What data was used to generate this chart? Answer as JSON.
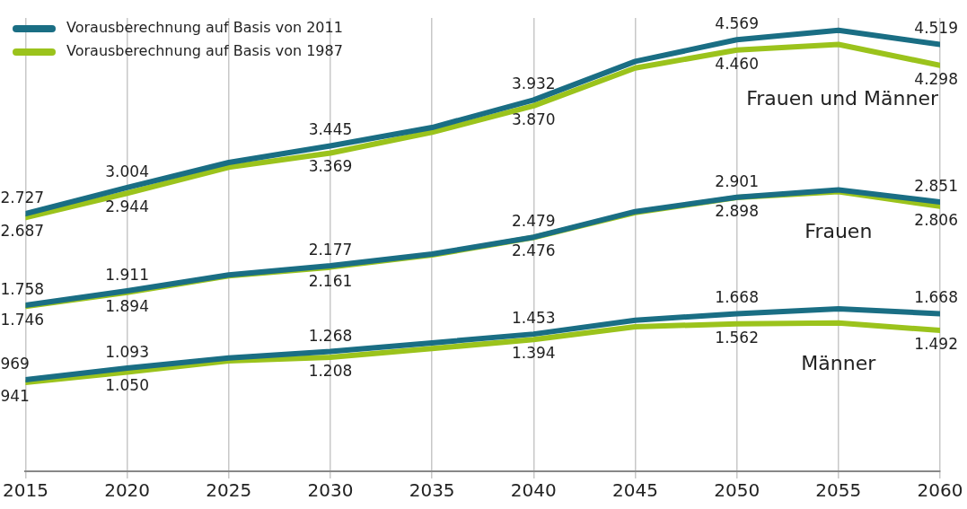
{
  "chart_data": {
    "type": "line",
    "x": [
      2015,
      2020,
      2025,
      2030,
      2035,
      2040,
      2045,
      2050,
      2055,
      2060
    ],
    "xlim": [
      2015,
      2060
    ],
    "xticks": [
      2015,
      2020,
      2025,
      2030,
      2035,
      2040,
      2045,
      2050,
      2055,
      2060
    ],
    "ylim": [
      0,
      4800
    ],
    "tick_labels": "x",
    "grid": "x",
    "legend": "top left",
    "marker": "none",
    "line_style": "solid",
    "series": [
      {
        "name": "Vorausberechnung auf Basis von 2011",
        "color": "#1a6e84",
        "values": [
          2727,
          3004,
          3270,
          3445,
          3640,
          3932,
          4340,
          4569,
          4670,
          4519
        ],
        "value_labels": [
          "2.727",
          "3.004",
          null,
          "3.445",
          null,
          "3.932",
          null,
          "4.569",
          null,
          "4.519"
        ]
      },
      {
        "name": "Vorausberechnung auf Basis von 1987",
        "color": "#9bc31c",
        "values": [
          2687,
          2944,
          3220,
          3369,
          3590,
          3870,
          4270,
          4460,
          4520,
          4298
        ],
        "value_labels": [
          "2.687",
          "2.944",
          null,
          "3.369",
          null,
          "3.870",
          null,
          "4.460",
          null,
          "4.298"
        ]
      },
      {
        "color": "#1a6e84",
        "values": [
          1758,
          1911,
          2080,
          2177,
          2300,
          2479,
          2750,
          2901,
          2980,
          2851
        ],
        "value_labels": [
          "1.758",
          "1.911",
          null,
          "2.177",
          null,
          "2.479",
          null,
          "2.901",
          null,
          "2.851"
        ]
      },
      {
        "color": "#9bc31c",
        "values": [
          1746,
          1894,
          2070,
          2161,
          2290,
          2476,
          2740,
          2898,
          2960,
          2806
        ],
        "value_labels": [
          "1.746",
          "1.894",
          null,
          "2.161",
          null,
          "2.476",
          null,
          "2.898",
          null,
          "2.806"
        ]
      },
      {
        "color": "#1a6e84",
        "values": [
          969,
          1093,
          1200,
          1268,
          1360,
          1453,
          1600,
          1668,
          1720,
          1668
        ],
        "value_labels": [
          "969",
          "1.093",
          null,
          "1.268",
          null,
          "1.453",
          null,
          "1.668",
          null,
          "1.668"
        ]
      },
      {
        "color": "#9bc31c",
        "values": [
          941,
          1050,
          1170,
          1208,
          1300,
          1394,
          1530,
          1562,
          1570,
          1492
        ],
        "value_labels": [
          "941",
          "1.050",
          null,
          "1.208",
          null,
          "1.394",
          null,
          "1.562",
          null,
          "1.492"
        ]
      }
    ],
    "annotations": [
      "Frauen und Männer",
      "Frauen",
      "Männer"
    ]
  }
}
